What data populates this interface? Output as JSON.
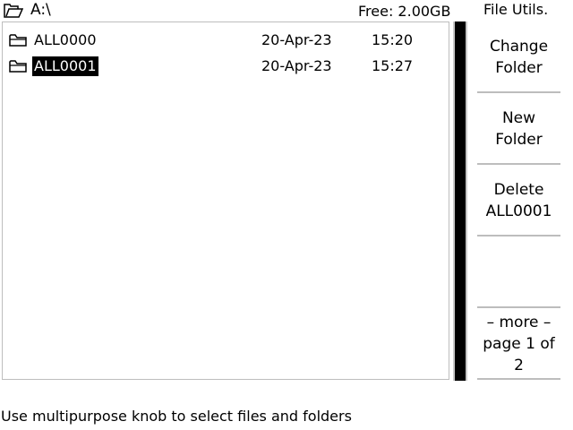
{
  "header": {
    "path": "A:\\",
    "free_space": "Free: 2.00GB",
    "menu_title": "File Utils."
  },
  "files": [
    {
      "name": "ALL0000",
      "date": "20-Apr-23",
      "time": "15:20",
      "selected": false,
      "icon": "folder-icon"
    },
    {
      "name": "ALL0001",
      "date": "20-Apr-23",
      "time": "15:27",
      "selected": true,
      "icon": "folder-icon"
    }
  ],
  "softkeys": [
    {
      "label": "Change\nFolder"
    },
    {
      "label": "New\nFolder"
    },
    {
      "label": "Delete\nALL0001"
    },
    {
      "label": ""
    },
    {
      "label": "– more –\npage 1 of 2"
    }
  ],
  "scroll": {
    "visible_fraction": 1.0
  },
  "hint": "Use multipurpose knob to select files and folders"
}
